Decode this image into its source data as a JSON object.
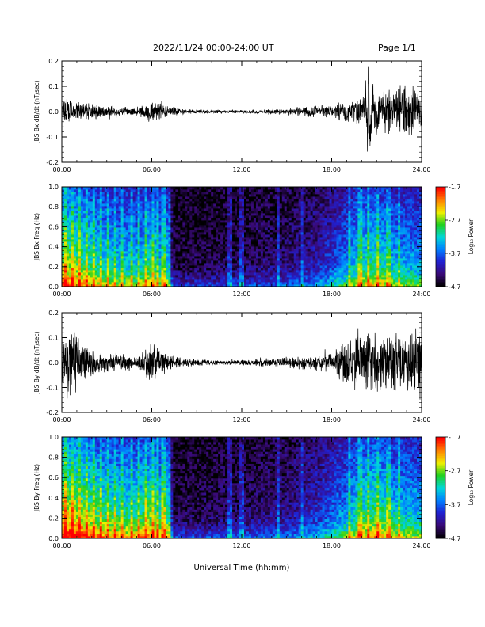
{
  "header": {
    "title": "2022/11/24  00:00-24:00 UT",
    "page_label": "Page 1/1"
  },
  "footer": {
    "x_axis_label": "Universal Time (hh:mm)"
  },
  "colors": {
    "waveform": "#000000",
    "axes": "#000000",
    "background": "#ffffff",
    "colormap": [
      "#000000",
      "#3a0a78",
      "#2020d0",
      "#0080ff",
      "#00d8d8",
      "#20d020",
      "#f0f000",
      "#ff8000",
      "#ff0000"
    ]
  },
  "chart_data": [
    {
      "type": "line",
      "panel": "waveform-bx",
      "ylabel": "JBS Bx dB/dt (nT/sec)",
      "x_ticks": [
        "00:00",
        "06:00",
        "12:00",
        "18:00",
        "24:00"
      ],
      "xlim": [
        0,
        24
      ],
      "ylim": [
        -0.2,
        0.2
      ],
      "y_ticks": [
        "-0.2",
        "-0.1",
        "0.0",
        "0.1",
        "0.2"
      ],
      "x_unit": "hours UT",
      "amplitude_envelope": {
        "x": [
          0,
          1,
          2,
          3,
          4,
          5,
          6,
          7,
          8,
          9,
          10,
          11,
          12,
          13,
          14,
          15,
          16,
          17,
          18,
          19,
          20,
          20.5,
          21,
          22,
          23,
          24
        ],
        "y": [
          0.07,
          0.05,
          0.035,
          0.025,
          0.02,
          0.02,
          0.05,
          0.03,
          0.012,
          0.01,
          0.008,
          0.008,
          0.008,
          0.01,
          0.012,
          0.015,
          0.02,
          0.03,
          0.03,
          0.05,
          0.06,
          0.2,
          0.09,
          0.1,
          0.12,
          0.1
        ]
      }
    },
    {
      "type": "heatmap",
      "panel": "spectrogram-bx",
      "ylabel": "JBS Bx Freq (Hz)",
      "x_ticks": [
        "00:00",
        "06:00",
        "12:00",
        "18:00",
        "24:00"
      ],
      "y_ticks": [
        "0.0",
        "0.2",
        "0.4",
        "0.6",
        "0.8",
        "1.0"
      ],
      "xlim": [
        0,
        24
      ],
      "ylim": [
        0,
        1.0
      ],
      "colorbar_label": "Log₁₀ Power",
      "colorbar_ticks": [
        "-1.7",
        "-2.7",
        "-3.7",
        "-4.7"
      ],
      "color_range": [
        -4.7,
        -1.7
      ],
      "activity_profile": {
        "x": [
          0,
          1,
          2,
          3,
          4,
          5,
          6,
          6.5,
          7,
          7.3,
          7.5,
          9,
          12,
          15,
          17,
          18,
          19,
          20,
          21,
          22,
          23,
          24
        ],
        "y": [
          0.75,
          0.7,
          0.6,
          0.55,
          0.5,
          0.5,
          0.6,
          0.5,
          0.55,
          0.2,
          0.05,
          0.05,
          0.08,
          0.12,
          0.2,
          0.3,
          0.4,
          0.55,
          0.6,
          0.5,
          0.45,
          0.45
        ]
      }
    },
    {
      "type": "line",
      "panel": "waveform-by",
      "ylabel": "JBS By dB/dt (nT/sec)",
      "x_ticks": [
        "00:00",
        "06:00",
        "12:00",
        "18:00",
        "24:00"
      ],
      "xlim": [
        0,
        24
      ],
      "ylim": [
        -0.2,
        0.2
      ],
      "y_ticks": [
        "-0.2",
        "-0.1",
        "0.0",
        "0.1",
        "0.2"
      ],
      "x_unit": "hours UT",
      "amplitude_envelope": {
        "x": [
          0,
          1,
          2,
          3,
          4,
          5,
          6,
          7,
          8,
          9,
          10,
          11,
          12,
          13,
          14,
          15,
          16,
          17,
          18,
          19,
          20,
          21,
          22,
          23,
          24
        ],
        "y": [
          0.15,
          0.14,
          0.06,
          0.04,
          0.035,
          0.035,
          0.09,
          0.04,
          0.02,
          0.015,
          0.012,
          0.01,
          0.012,
          0.015,
          0.02,
          0.025,
          0.03,
          0.04,
          0.04,
          0.1,
          0.13,
          0.15,
          0.14,
          0.15,
          0.18
        ]
      }
    },
    {
      "type": "heatmap",
      "panel": "spectrogram-by",
      "ylabel": "JBS By Freq (Hz)",
      "x_ticks": [
        "00:00",
        "06:00",
        "12:00",
        "18:00",
        "24:00"
      ],
      "y_ticks": [
        "0.0",
        "0.2",
        "0.4",
        "0.6",
        "0.8",
        "1.0"
      ],
      "xlim": [
        0,
        24
      ],
      "ylim": [
        0,
        1.0
      ],
      "colorbar_label": "Log₁₀ Power",
      "colorbar_ticks": [
        "-1.7",
        "-2.7",
        "-3.7",
        "-4.7"
      ],
      "color_range": [
        -4.7,
        -1.7
      ],
      "activity_profile": {
        "x": [
          0,
          1,
          2,
          3,
          4,
          5,
          6,
          6.5,
          7,
          7.3,
          7.5,
          9,
          12,
          15,
          17,
          18,
          19,
          20,
          21,
          22,
          23,
          24
        ],
        "y": [
          0.85,
          0.8,
          0.7,
          0.65,
          0.6,
          0.6,
          0.7,
          0.6,
          0.65,
          0.25,
          0.07,
          0.07,
          0.1,
          0.15,
          0.25,
          0.35,
          0.45,
          0.6,
          0.65,
          0.55,
          0.5,
          0.5
        ]
      }
    }
  ]
}
